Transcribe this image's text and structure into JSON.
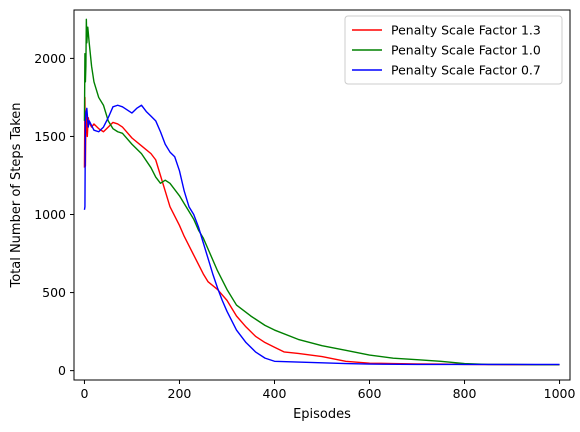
{
  "chart_data": {
    "type": "line",
    "title": "",
    "xlabel": "Episodes",
    "ylabel": "Total Number of Steps Taken",
    "xlim": [
      -22,
      1022
    ],
    "ylim": [
      -60,
      2310
    ],
    "xticks": [
      0,
      200,
      400,
      600,
      800,
      1000
    ],
    "yticks": [
      0,
      500,
      1000,
      1500,
      2000
    ],
    "grid": false,
    "legend_position": "top-right",
    "series": [
      {
        "name": "Penalty Scale Factor 1.3",
        "color": "#ff0000",
        "x": [
          0,
          1,
          2,
          3,
          4,
          5,
          6,
          8,
          10,
          15,
          20,
          30,
          40,
          50,
          60,
          70,
          80,
          100,
          120,
          140,
          150,
          160,
          170,
          180,
          190,
          200,
          210,
          220,
          230,
          240,
          250,
          260,
          280,
          300,
          320,
          340,
          360,
          380,
          400,
          420,
          450,
          500,
          550,
          600,
          650,
          700,
          750,
          800,
          850,
          900,
          950,
          1000
        ],
        "y": [
          1300,
          1750,
          1310,
          1580,
          1650,
          1600,
          1500,
          1620,
          1590,
          1560,
          1580,
          1550,
          1530,
          1560,
          1590,
          1580,
          1560,
          1490,
          1440,
          1390,
          1350,
          1250,
          1150,
          1050,
          990,
          930,
          860,
          800,
          740,
          680,
          620,
          570,
          520,
          450,
          350,
          280,
          220,
          180,
          150,
          120,
          110,
          90,
          60,
          48,
          45,
          43,
          42,
          40,
          39,
          38,
          38,
          38
        ]
      },
      {
        "name": "Penalty Scale Factor 1.0",
        "color": "#008000",
        "x": [
          0,
          1,
          2,
          3,
          4,
          5,
          7,
          10,
          15,
          20,
          30,
          40,
          50,
          60,
          70,
          80,
          100,
          120,
          140,
          150,
          160,
          170,
          180,
          190,
          200,
          210,
          220,
          230,
          240,
          250,
          260,
          280,
          300,
          320,
          350,
          380,
          400,
          450,
          500,
          550,
          600,
          650,
          700,
          750,
          800,
          850,
          900,
          950,
          1000
        ],
        "y": [
          1600,
          2030,
          1850,
          1950,
          2250,
          2100,
          2200,
          2100,
          1950,
          1850,
          1750,
          1700,
          1600,
          1550,
          1530,
          1520,
          1450,
          1390,
          1300,
          1240,
          1200,
          1220,
          1200,
          1160,
          1120,
          1070,
          1020,
          970,
          900,
          850,
          780,
          640,
          520,
          420,
          350,
          290,
          260,
          200,
          160,
          130,
          100,
          80,
          70,
          60,
          45,
          40,
          40,
          38,
          38
        ]
      },
      {
        "name": "Penalty Scale Factor 0.7",
        "color": "#0000ff",
        "x": [
          0,
          1,
          2,
          3,
          5,
          8,
          10,
          15,
          20,
          30,
          40,
          50,
          60,
          70,
          80,
          90,
          100,
          110,
          120,
          130,
          140,
          150,
          160,
          170,
          180,
          190,
          200,
          210,
          220,
          230,
          240,
          250,
          260,
          270,
          280,
          290,
          300,
          320,
          340,
          360,
          380,
          400,
          450,
          500,
          550,
          600,
          700,
          800,
          900,
          1000
        ],
        "y": [
          1030,
          1050,
          1600,
          1650,
          1680,
          1560,
          1600,
          1570,
          1540,
          1530,
          1560,
          1620,
          1690,
          1700,
          1690,
          1670,
          1650,
          1680,
          1700,
          1660,
          1630,
          1600,
          1530,
          1450,
          1400,
          1370,
          1280,
          1150,
          1050,
          1000,
          920,
          820,
          720,
          620,
          530,
          450,
          380,
          260,
          180,
          120,
          80,
          60,
          55,
          50,
          45,
          42,
          40,
          40,
          40,
          40
        ]
      }
    ]
  }
}
